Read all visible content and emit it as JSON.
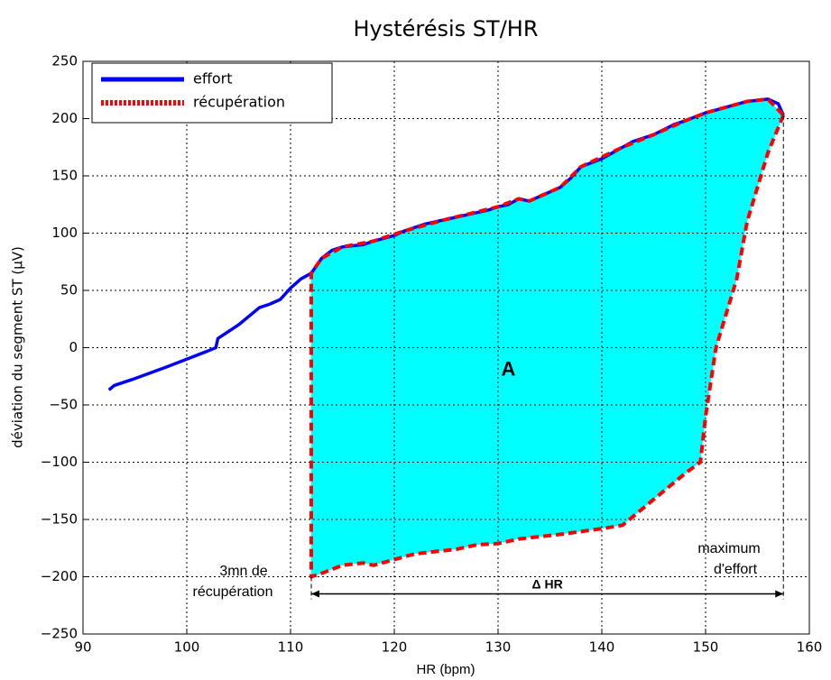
{
  "chart_data": {
    "type": "line",
    "title": "Hystérésis ST/HR",
    "x_label": "HR (bpm)",
    "y_label": "déviation du segment ST (µV)",
    "xlim": [
      90,
      160
    ],
    "xticks": [
      90,
      100,
      110,
      120,
      130,
      140,
      150,
      160
    ],
    "ylim": [
      -250,
      250
    ],
    "yticks": [
      {
        "value": -250,
        "label": "−250"
      },
      {
        "value": -200,
        "label": "−200"
      },
      {
        "value": -150,
        "label": "−150"
      },
      {
        "value": -100,
        "label": "−100"
      },
      {
        "value": -50,
        "label": "−50"
      },
      0,
      50,
      100,
      150,
      200,
      250
    ],
    "grid": true,
    "legend": "upper left",
    "fill_color": "#00ffff",
    "annotations": [
      "A",
      "3mn de",
      "récupération",
      "maximum",
      "d'effort",
      "Δ HR"
    ],
    "series": [
      {
        "name": "effort",
        "color": "#0000ff",
        "x": [
          92.5,
          93,
          95,
          98,
          100,
          102,
          102.8,
          103,
          105,
          107,
          108,
          109,
          110,
          111,
          112,
          113,
          114,
          115,
          117,
          118,
          120,
          121,
          123,
          125,
          127,
          129,
          130,
          131,
          132,
          133,
          134,
          136,
          137,
          138,
          140,
          142,
          143,
          145,
          147,
          148,
          150,
          152,
          154,
          156,
          157,
          157.5
        ],
        "values": [
          -37,
          -33,
          -27,
          -17,
          -10,
          -3,
          0,
          8,
          20,
          35,
          38,
          42,
          52,
          60,
          65,
          78,
          85,
          88,
          90,
          93,
          98,
          102,
          108,
          112,
          116,
          120,
          123,
          125,
          130,
          128,
          132,
          140,
          148,
          158,
          165,
          175,
          180,
          186,
          195,
          198,
          205,
          210,
          215,
          217,
          213,
          203
        ]
      },
      {
        "name": "récupération",
        "color": "#ff0000",
        "x": [
          157.5,
          156,
          155,
          154,
          153,
          151,
          150,
          149.5,
          148,
          146,
          144,
          142,
          140,
          136,
          132,
          130,
          128,
          126,
          122,
          120,
          118,
          117,
          115,
          113,
          112,
          112,
          112,
          112,
          112,
          113,
          115,
          118,
          121,
          125,
          130,
          132,
          133,
          136,
          138,
          142,
          145,
          148,
          150,
          154,
          156,
          157.5
        ],
        "values": [
          203,
          170,
          140,
          110,
          60,
          0,
          -60,
          -100,
          -110,
          -125,
          -140,
          -155,
          -158,
          -163,
          -167,
          -171,
          -172,
          -176,
          -180,
          -185,
          -190,
          -188,
          -190,
          -197,
          -200,
          -150,
          -50,
          50,
          65,
          78,
          88,
          93,
          102,
          112,
          123,
          130,
          128,
          140,
          158,
          175,
          186,
          198,
          205,
          215,
          217,
          203
        ]
      }
    ]
  }
}
